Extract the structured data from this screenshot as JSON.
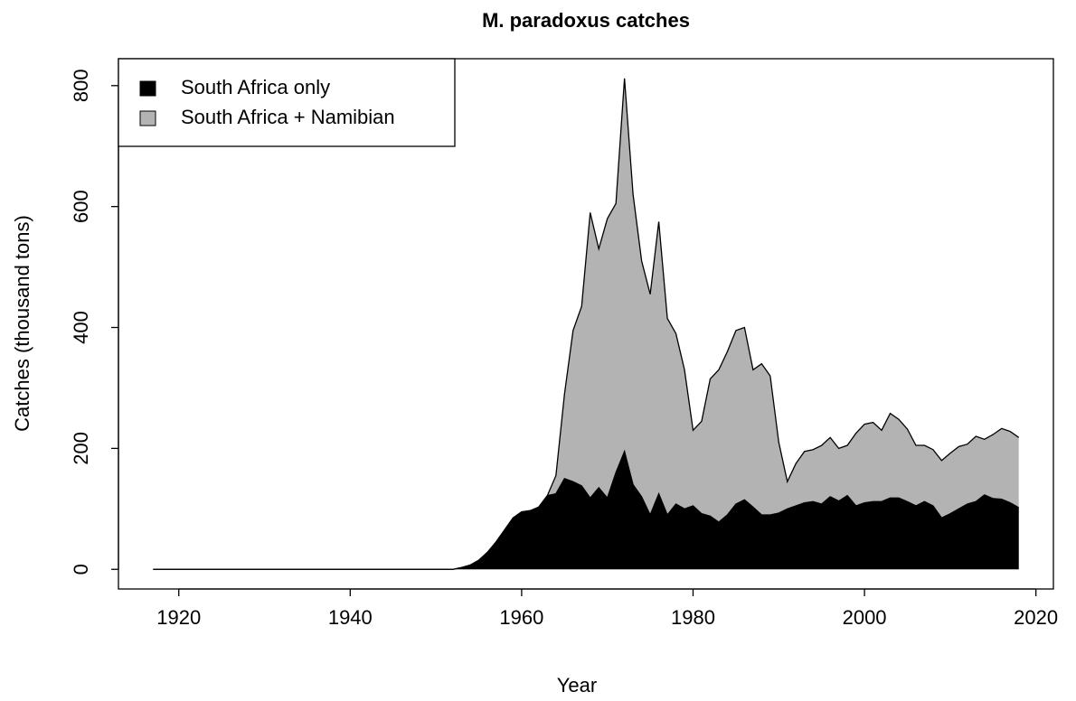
{
  "chart_data": {
    "type": "area",
    "title": "M. paradoxus catches",
    "x_label": "Year",
    "y_label": "Catches (thousand tons)",
    "x": [
      1917,
      1918,
      1919,
      1920,
      1921,
      1922,
      1923,
      1924,
      1925,
      1926,
      1927,
      1928,
      1929,
      1930,
      1931,
      1932,
      1933,
      1934,
      1935,
      1936,
      1937,
      1938,
      1939,
      1940,
      1941,
      1942,
      1943,
      1944,
      1945,
      1946,
      1947,
      1948,
      1949,
      1950,
      1951,
      1952,
      1953,
      1954,
      1955,
      1956,
      1957,
      1958,
      1959,
      1960,
      1961,
      1962,
      1963,
      1964,
      1965,
      1966,
      1967,
      1968,
      1969,
      1970,
      1971,
      1972,
      1973,
      1974,
      1975,
      1976,
      1977,
      1978,
      1979,
      1980,
      1981,
      1982,
      1983,
      1984,
      1985,
      1986,
      1987,
      1988,
      1989,
      1990,
      1991,
      1992,
      1993,
      1994,
      1995,
      1996,
      1997,
      1998,
      1999,
      2000,
      2001,
      2002,
      2003,
      2004,
      2005,
      2006,
      2007,
      2008,
      2009,
      2010,
      2011,
      2012,
      2013,
      2014,
      2015,
      2016,
      2017,
      2018
    ],
    "series": [
      {
        "name": "South Africa + Namibian",
        "color": "#b3b3b3",
        "values": [
          0,
          0,
          0,
          0,
          0,
          0,
          0,
          0,
          0,
          0,
          0,
          0,
          0,
          0,
          0,
          0,
          0,
          0,
          0,
          0,
          0,
          0,
          0,
          0,
          0,
          0,
          0,
          0,
          0,
          0,
          0,
          0,
          0,
          0,
          0,
          0,
          3,
          7,
          15,
          28,
          45,
          65,
          85,
          95,
          97,
          103,
          122,
          155,
          290,
          395,
          435,
          590,
          530,
          580,
          605,
          812,
          620,
          510,
          455,
          575,
          415,
          390,
          330,
          230,
          245,
          315,
          330,
          360,
          395,
          400,
          330,
          340,
          320,
          210,
          145,
          175,
          195,
          198,
          205,
          218,
          200,
          205,
          225,
          240,
          243,
          230,
          258,
          248,
          232,
          205,
          205,
          198,
          180,
          192,
          203,
          207,
          220,
          215,
          223,
          233,
          228,
          218
        ]
      },
      {
        "name": "South Africa only",
        "color": "#000000",
        "values": [
          0,
          0,
          0,
          0,
          0,
          0,
          0,
          0,
          0,
          0,
          0,
          0,
          0,
          0,
          0,
          0,
          0,
          0,
          0,
          0,
          0,
          0,
          0,
          0,
          0,
          0,
          0,
          0,
          0,
          0,
          0,
          0,
          0,
          0,
          0,
          0,
          3,
          7,
          15,
          28,
          45,
          65,
          85,
          95,
          97,
          103,
          122,
          125,
          150,
          145,
          138,
          118,
          135,
          118,
          160,
          195,
          140,
          120,
          90,
          125,
          90,
          108,
          100,
          105,
          92,
          88,
          78,
          90,
          108,
          115,
          103,
          90,
          90,
          93,
          100,
          105,
          110,
          112,
          108,
          120,
          113,
          122,
          105,
          110,
          112,
          112,
          118,
          118,
          112,
          105,
          112,
          105,
          85,
          92,
          100,
          108,
          112,
          123,
          117,
          116,
          110,
          102
        ]
      }
    ],
    "xlim": [
      1912.96,
      2022.04
    ],
    "ylim": [
      -32.5,
      844.5
    ],
    "xticks": [
      1920,
      1940,
      1960,
      1980,
      2000,
      2020
    ],
    "yticks": [
      0,
      200,
      400,
      600,
      800
    ],
    "legend_order": [
      1,
      0
    ],
    "legend": "top-left"
  }
}
